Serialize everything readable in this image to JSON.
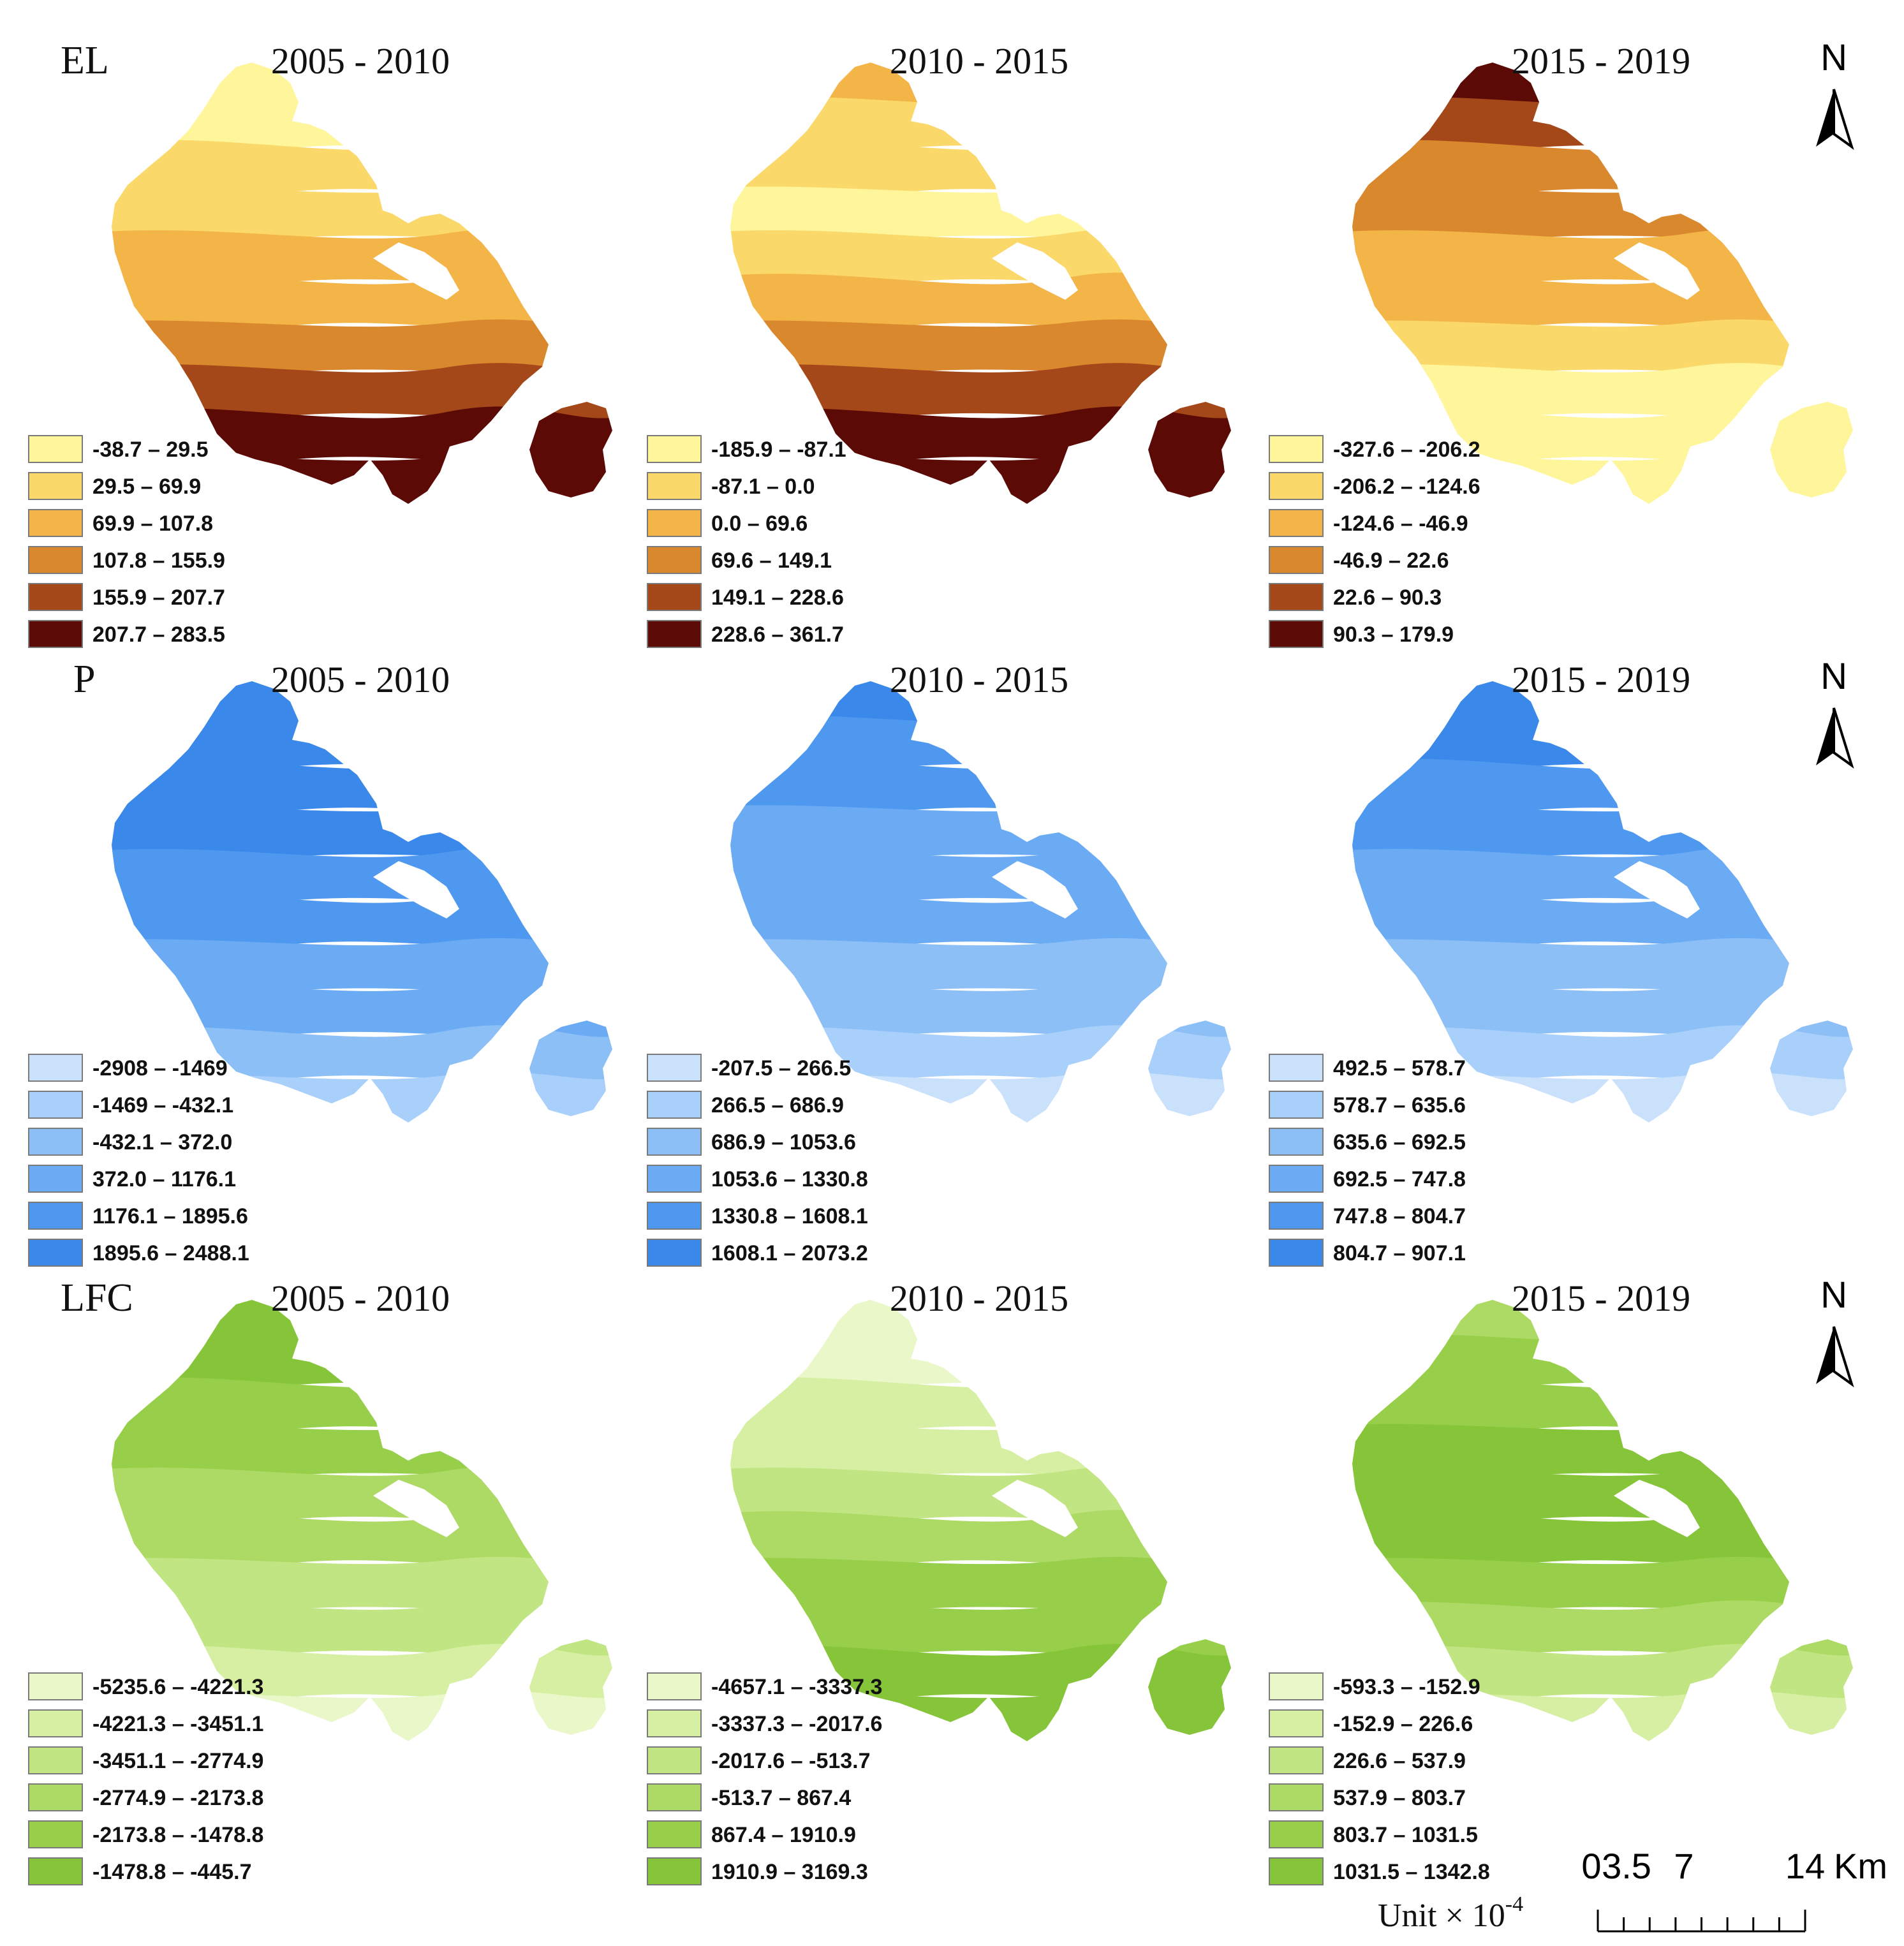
{
  "rows": [
    {
      "variable": "EL",
      "panels": [
        {
          "period": "2005 - 2010",
          "legend": [
            "-38.7 – 29.5",
            "29.5 – 69.9",
            "69.9 – 107.8",
            "107.8 – 155.9",
            "155.9 – 207.7",
            "207.7 – 283.5"
          ],
          "colors": [
            "#fff59a",
            "#fbd86a",
            "#f3b448",
            "#d9882e",
            "#a4481a",
            "#5c0a06"
          ],
          "zone_order": [
            0,
            0,
            1,
            1,
            2,
            2,
            3,
            4,
            5,
            5
          ]
        },
        {
          "period": "2010 - 2015",
          "legend": [
            "-185.9 – -87.1",
            "-87.1 – 0.0",
            "0.0 – 69.6",
            "69.6 – 149.1",
            "149.1 – 228.6",
            "228.6 – 361.7"
          ],
          "colors": [
            "#fff59a",
            "#fbd86a",
            "#f3b448",
            "#d9882e",
            "#a4481a",
            "#5c0a06"
          ],
          "zone_order": [
            2,
            1,
            1,
            0,
            1,
            2,
            3,
            4,
            5,
            5
          ]
        },
        {
          "period": "2015 - 2019",
          "legend": [
            "-327.6 – -206.2",
            "-206.2 – -124.6",
            "-124.6 – -46.9",
            "-46.9 – 22.6",
            "22.6 – 90.3",
            "90.3 – 179.9"
          ],
          "colors": [
            "#fff59a",
            "#fbd86a",
            "#f3b448",
            "#d9882e",
            "#a4481a",
            "#5c0a06"
          ],
          "zone_order": [
            5,
            4,
            3,
            3,
            2,
            2,
            1,
            0,
            0,
            0
          ]
        }
      ]
    },
    {
      "variable": "P",
      "panels": [
        {
          "period": "2005 - 2010",
          "legend": [
            "-2908 – -1469",
            "-1469 – -432.1",
            "-432.1 – 372.0",
            "372.0 – 1176.1",
            "1176.1 – 1895.6",
            "1895.6 – 2488.1"
          ],
          "colors": [
            "#c9e1fb",
            "#a9d0fa",
            "#8dbff7",
            "#6aabf4",
            "#4f98ef",
            "#3a88ea"
          ],
          "zone_order": [
            5,
            5,
            5,
            5,
            4,
            4,
            3,
            3,
            2,
            1
          ]
        },
        {
          "period": "2010 - 2015",
          "legend": [
            "-207.5 – 266.5",
            "266.5 – 686.9",
            "686.9 – 1053.6",
            "1053.6 – 1330.8",
            "1330.8 – 1608.1",
            "1608.1 – 2073.2"
          ],
          "colors": [
            "#c9e1fb",
            "#a9d0fa",
            "#8dbff7",
            "#6aabf4",
            "#4f98ef",
            "#3a88ea"
          ],
          "zone_order": [
            5,
            4,
            4,
            3,
            3,
            3,
            2,
            2,
            1,
            0
          ]
        },
        {
          "period": "2015 - 2019",
          "legend": [
            "492.5 – 578.7",
            "578.7 – 635.6",
            "635.6 – 692.5",
            "692.5 – 747.8",
            "747.8 – 804.7",
            "804.7 – 907.1"
          ],
          "colors": [
            "#c9e1fb",
            "#a9d0fa",
            "#8dbff7",
            "#6aabf4",
            "#4f98ef",
            "#3a88ea"
          ],
          "zone_order": [
            5,
            5,
            4,
            4,
            3,
            3,
            2,
            2,
            1,
            0
          ]
        }
      ]
    },
    {
      "variable": "LFC",
      "panels": [
        {
          "period": "2005 - 2010",
          "legend": [
            "-5235.6 – -4221.3",
            "-4221.3 – -3451.1",
            "-3451.1 – -2774.9",
            "-2774.9 – -2173.8",
            "-2173.8 – -1478.8",
            "-1478.8 – -445.7"
          ],
          "colors": [
            "#eaf7c9",
            "#d6efa3",
            "#c2e583",
            "#acda64",
            "#98cf4a",
            "#86c43a"
          ],
          "zone_order": [
            5,
            5,
            4,
            4,
            3,
            3,
            2,
            2,
            1,
            0
          ]
        },
        {
          "period": "2010 - 2015",
          "legend": [
            "-4657.1 – -3337.3",
            "-3337.3 – -2017.6",
            "-2017.6 – -513.7",
            "-513.7 – 867.4",
            "867.4 – 1910.9",
            "1910.9 – 3169.3"
          ],
          "colors": [
            "#eaf7c9",
            "#d6efa3",
            "#c2e583",
            "#acda64",
            "#98cf4a",
            "#86c43a"
          ],
          "zone_order": [
            0,
            0,
            1,
            1,
            2,
            3,
            4,
            4,
            5,
            5
          ]
        },
        {
          "period": "2015 - 2019",
          "legend": [
            "-593.3 – -152.9",
            "-152.9 – 226.6",
            "226.6 – 537.9",
            "537.9 – 803.7",
            "803.7 – 1031.5",
            "1031.5 – 1342.8"
          ],
          "colors": [
            "#eaf7c9",
            "#d6efa3",
            "#c2e583",
            "#acda64",
            "#98cf4a",
            "#86c43a"
          ],
          "zone_order": [
            3,
            4,
            4,
            5,
            5,
            5,
            4,
            3,
            2,
            1
          ]
        }
      ]
    }
  ],
  "north_label": "N",
  "scale_bar": {
    "ticks": [
      "0",
      "3.5",
      "7",
      "14"
    ],
    "unit": "Km"
  },
  "unit_label": "Unit × 10",
  "unit_exponent": "-4"
}
